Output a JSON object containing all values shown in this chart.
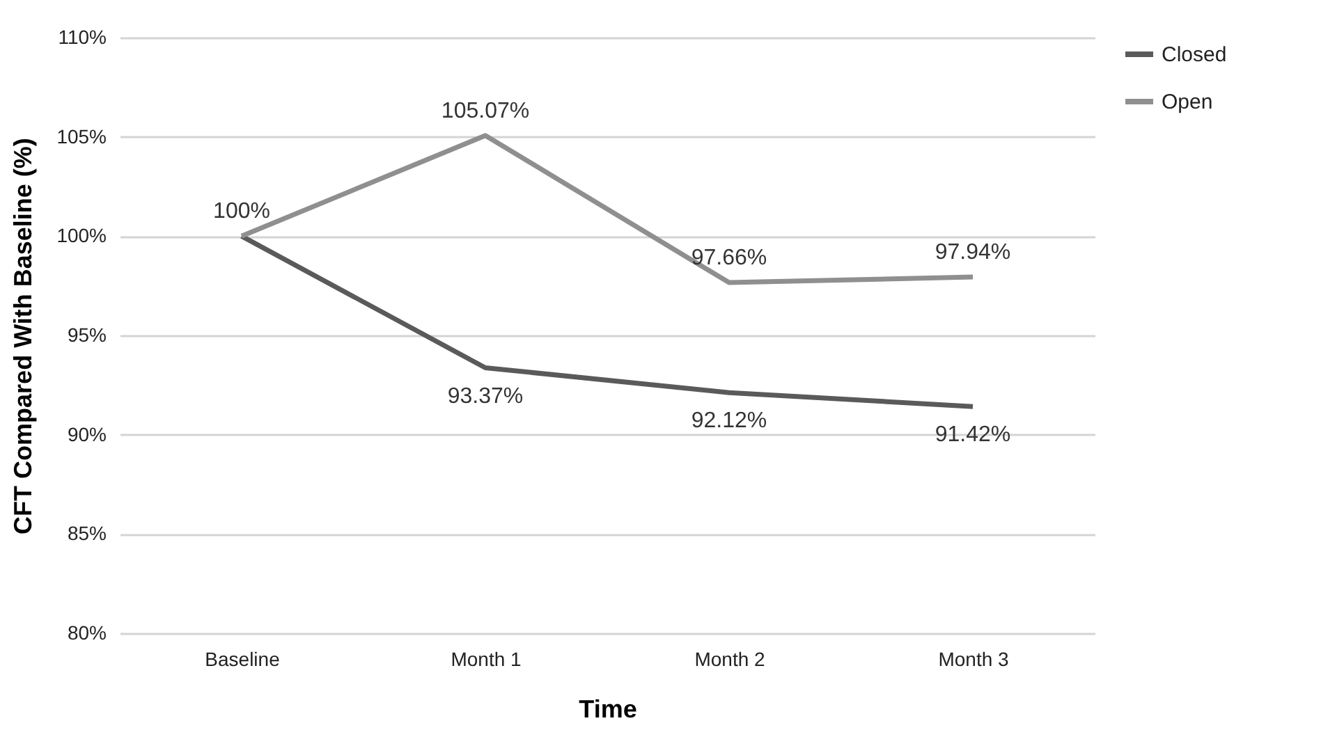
{
  "chart_data": {
    "type": "line",
    "xlabel": "Time",
    "ylabel": "CFT Compared With Baseline (%)",
    "categories": [
      "Baseline",
      "Month 1",
      "Month 2",
      "Month 3"
    ],
    "series": [
      {
        "name": "Closed",
        "color": "#5a5a5a",
        "values": [
          100,
          93.37,
          92.12,
          91.42
        ],
        "value_labels": [
          null,
          "93.37%",
          "92.12%",
          "91.42%"
        ]
      },
      {
        "name": "Open",
        "color": "#8f8f8f",
        "values": [
          100,
          105.07,
          97.66,
          97.94
        ],
        "value_labels": [
          "100%",
          "105.07%",
          "97.66%",
          "97.94%"
        ]
      }
    ],
    "ylim": [
      80,
      110
    ],
    "yticks": [
      {
        "value": 80,
        "label": "80%"
      },
      {
        "value": 85,
        "label": "85%"
      },
      {
        "value": 90,
        "label": "90%"
      },
      {
        "value": 95,
        "label": "95%"
      },
      {
        "value": 100,
        "label": "100%"
      },
      {
        "value": 105,
        "label": "105%"
      },
      {
        "value": 110,
        "label": "110%"
      }
    ],
    "grid": "y",
    "legend": "right",
    "marker": "none",
    "line_style": "solid"
  }
}
